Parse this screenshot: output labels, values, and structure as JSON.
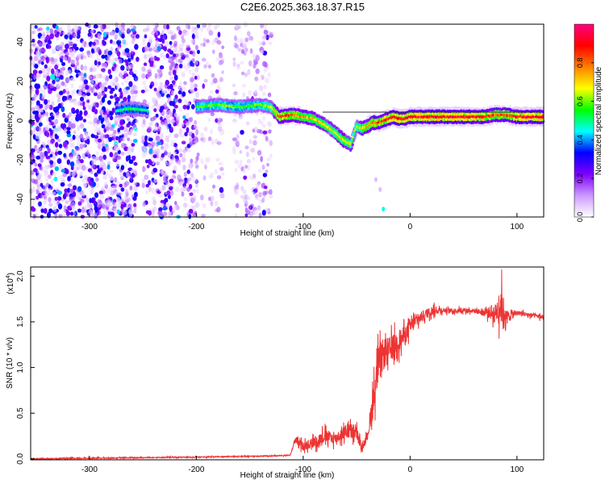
{
  "title": "C2E6.2025.363.18.37.R15",
  "chart_data": [
    {
      "type": "heatmap",
      "name": "spectrogram",
      "xlabel": "Height of straight line (km)",
      "ylabel": "Frequency (Hz)",
      "xlim": [
        -355,
        125
      ],
      "ylim": [
        -49,
        49
      ],
      "xticks": [
        -300,
        -200,
        -100,
        0,
        100
      ],
      "yticks": [
        -40,
        -20,
        0,
        20,
        40
      ],
      "colorbar": {
        "label": "Normalized spectral amplitude",
        "range": [
          0,
          1
        ],
        "ticks": [
          "0.0",
          "0.2",
          "0.4",
          "0.6",
          "0.8"
        ],
        "tick_values": [
          0.0,
          0.2,
          0.4,
          0.6,
          0.8
        ],
        "colors": [
          "#ffffff",
          "#cc99ff",
          "#7f00ff",
          "#0000ff",
          "#00ffff",
          "#00ff00",
          "#ffff00",
          "#ff8000",
          "#ff0000",
          "#ff0080"
        ]
      },
      "ridge": {
        "x": [
          -275,
          -265,
          -255,
          -245,
          -200,
          -180,
          -160,
          -140,
          -130,
          -122,
          -110,
          -100,
          -90,
          -80,
          -70,
          -62,
          -55,
          -50,
          -45,
          -40,
          -35,
          -30,
          -25,
          -20,
          -15,
          -10,
          -5,
          0,
          10,
          30,
          50,
          70,
          80,
          90,
          100,
          110,
          125
        ],
        "y": [
          5,
          6,
          6,
          5,
          7,
          8,
          7,
          8,
          7,
          2,
          3,
          2,
          1,
          -2,
          -6,
          -10,
          -12,
          -3,
          -4,
          -3,
          -1,
          -1,
          0,
          1,
          2,
          1,
          1,
          2,
          2,
          2,
          2,
          2,
          3,
          3,
          2,
          2,
          2
        ],
        "amp": [
          0.5,
          0.55,
          0.55,
          0.5,
          0.6,
          0.62,
          0.6,
          0.62,
          0.65,
          0.9,
          0.85,
          0.8,
          0.75,
          0.72,
          0.7,
          0.75,
          0.7,
          0.65,
          0.75,
          0.8,
          0.85,
          0.85,
          0.9,
          0.9,
          0.92,
          0.95,
          0.95,
          0.95,
          0.95,
          0.95,
          0.95,
          0.9,
          0.85,
          0.85,
          0.9,
          0.95,
          0.95
        ]
      },
      "noise_bands": [
        {
          "x0": -355,
          "x1": -255,
          "density": 1.0,
          "amp": 0.35
        },
        {
          "x0": -250,
          "x1": -198,
          "density": 0.85,
          "amp": 0.3
        },
        {
          "x0": -195,
          "x1": -175,
          "density": 0.35,
          "amp": 0.18
        },
        {
          "x0": -165,
          "x1": -130,
          "density": 0.45,
          "amp": 0.2
        }
      ],
      "outliers": [
        {
          "x": -32,
          "y": -30,
          "amp": 0.12
        },
        {
          "x": -28,
          "y": -35,
          "amp": 0.12
        },
        {
          "x": -25,
          "y": -45,
          "amp": 0.45
        }
      ]
    },
    {
      "type": "line",
      "name": "snr",
      "xlabel": "Height of straight line (km)",
      "ylabel": "SNR (10 * v/v)",
      "scale_label": "(x10",
      "scale_exp": "4",
      "scale_close": ")",
      "color": "#ee3333",
      "xlim": [
        -355,
        125
      ],
      "ylim": [
        -0.01,
        2.1
      ],
      "xticks": [
        -300,
        -200,
        -100,
        0,
        100
      ],
      "yticks": [
        0.0,
        0.5,
        1.0,
        1.5,
        2.0
      ],
      "ytick_labels": [
        "0.0",
        "0.5",
        "1.0",
        "1.5",
        "2.0"
      ],
      "series": {
        "x": [
          -355,
          -200,
          -140,
          -112,
          -108,
          -100,
          -90,
          -80,
          -70,
          -60,
          -55,
          -50,
          -45,
          -40,
          -35,
          -30,
          -25,
          -20,
          -15,
          -10,
          -5,
          0,
          10,
          20,
          30,
          40,
          50,
          60,
          70,
          80,
          85,
          90,
          100,
          110,
          125
        ],
        "y": [
          0.0,
          0.02,
          0.03,
          0.04,
          0.2,
          0.14,
          0.18,
          0.25,
          0.22,
          0.3,
          0.3,
          0.28,
          0.12,
          0.25,
          0.6,
          1.0,
          1.15,
          1.18,
          1.25,
          1.3,
          1.35,
          1.45,
          1.55,
          1.62,
          1.63,
          1.62,
          1.63,
          1.62,
          1.6,
          1.6,
          1.7,
          1.55,
          1.6,
          1.58,
          1.55
        ],
        "jitter": [
          0.01,
          0.01,
          0.01,
          0.01,
          0.05,
          0.1,
          0.12,
          0.15,
          0.12,
          0.15,
          0.18,
          0.15,
          0.06,
          0.1,
          0.35,
          0.4,
          0.35,
          0.3,
          0.25,
          0.25,
          0.2,
          0.18,
          0.12,
          0.1,
          0.06,
          0.05,
          0.05,
          0.05,
          0.08,
          0.2,
          0.45,
          0.15,
          0.05,
          0.05,
          0.05
        ]
      }
    }
  ]
}
